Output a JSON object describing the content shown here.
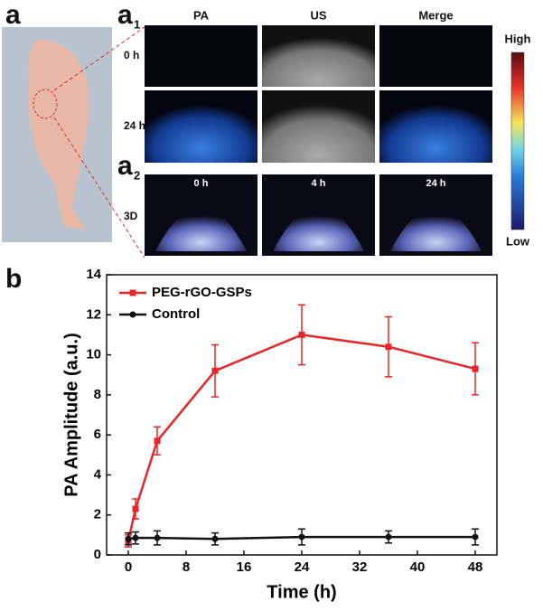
{
  "panel_a": {
    "label": "a",
    "a1": {
      "letter": "a",
      "sub": "1"
    },
    "columns": [
      "PA",
      "US",
      "Merge"
    ],
    "rows": [
      "0 h",
      "24 h"
    ],
    "colorbar": {
      "high": "High",
      "low": "Low"
    },
    "a2": {
      "letter": "a",
      "sub": "2"
    },
    "times_3d": [
      "0 h",
      "4 h",
      "24 h"
    ],
    "row_3d": "3D"
  },
  "panel_b": {
    "label": "b"
  },
  "chart_data": {
    "type": "line",
    "xlabel": "Time (h)",
    "ylabel": "PA Amplitude (a.u.)",
    "x": [
      0,
      1,
      4,
      12,
      24,
      36,
      48
    ],
    "series": [
      {
        "name": "PEG-rGO-GSPs",
        "color": "#e8262a",
        "marker": "square",
        "values": [
          0.7,
          2.3,
          5.7,
          9.2,
          11.0,
          10.4,
          9.3
        ],
        "errors": [
          0.3,
          0.5,
          0.7,
          1.3,
          1.5,
          1.5,
          1.3
        ]
      },
      {
        "name": "Control",
        "color": "#111111",
        "marker": "circle",
        "values": [
          0.8,
          0.85,
          0.85,
          0.8,
          0.9,
          0.9,
          0.9
        ],
        "errors": [
          0.3,
          0.3,
          0.35,
          0.3,
          0.4,
          0.3,
          0.4
        ]
      }
    ],
    "xlim": [
      -3,
      51
    ],
    "xticks": [
      0,
      8,
      16,
      24,
      32,
      40,
      48
    ],
    "ylim": [
      0,
      14
    ],
    "yticks": [
      0,
      2,
      4,
      6,
      8,
      10,
      12,
      14
    ],
    "legend": "upper left"
  }
}
